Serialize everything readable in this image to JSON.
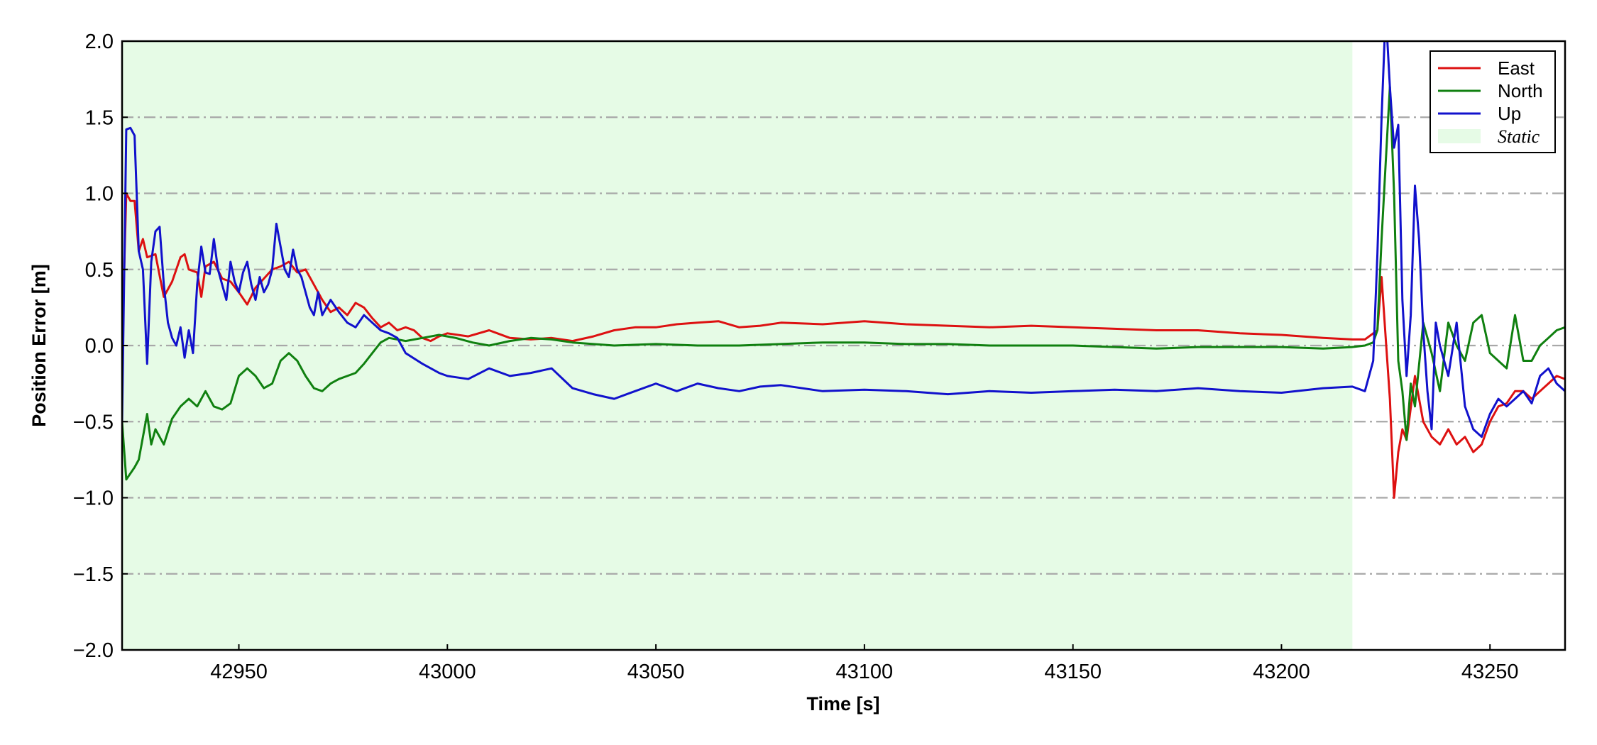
{
  "chart_data": {
    "type": "line",
    "xlabel": "Time [s]",
    "ylabel": "Position Error [m]",
    "xlim": [
      42922,
      43268
    ],
    "ylim": [
      -2.0,
      2.0
    ],
    "x_ticks": [
      42950,
      43000,
      43050,
      43100,
      43150,
      43200,
      43250
    ],
    "x_tick_labels": [
      "42950",
      "43000",
      "43050",
      "43100",
      "43150",
      "43200",
      "43250"
    ],
    "y_ticks": [
      -2.0,
      -1.5,
      -1.0,
      -0.5,
      0.0,
      0.5,
      1.0,
      1.5,
      2.0
    ],
    "y_tick_labels": [
      "−2.0",
      "−1.5",
      "−1.0",
      "−0.5",
      "0.0",
      "0.5",
      "1.0",
      "1.5",
      "2.0"
    ],
    "grid": "horizontal dash-dot",
    "legend_position": "top-right",
    "static_region": {
      "label": "Static",
      "x_start": 42922,
      "x_end": 43217,
      "color": "#e6fbe6"
    },
    "series": [
      {
        "name": "East",
        "color": "#dd1111",
        "x": [
          42922,
          42923,
          42924,
          42925,
          42926,
          42927,
          42928,
          42930,
          42932,
          42934,
          42936,
          42937,
          42938,
          42940,
          42941,
          42942,
          42944,
          42946,
          42948,
          42950,
          42952,
          42954,
          42956,
          42958,
          42960,
          42962,
          42964,
          42966,
          42968,
          42970,
          42972,
          42974,
          42976,
          42978,
          42980,
          42982,
          42984,
          42986,
          42988,
          42990,
          42992,
          42994,
          42996,
          42998,
          43000,
          43005,
          43010,
          43012,
          43015,
          43020,
          43025,
          43030,
          43035,
          43040,
          43045,
          43050,
          43055,
          43060,
          43065,
          43070,
          43075,
          43080,
          43090,
          43100,
          43110,
          43120,
          43130,
          43140,
          43150,
          43160,
          43170,
          43180,
          43190,
          43200,
          43210,
          43217,
          43220,
          43223,
          43224,
          43225,
          43226,
          43227,
          43228,
          43229,
          43230,
          43232,
          43234,
          43236,
          43238,
          43240,
          43242,
          43244,
          43246,
          43248,
          43250,
          43252,
          43254,
          43256,
          43258,
          43260,
          43262,
          43264,
          43266,
          43268
        ],
        "y": [
          0.0,
          1.0,
          0.95,
          0.95,
          0.62,
          0.7,
          0.58,
          0.6,
          0.32,
          0.42,
          0.58,
          0.6,
          0.5,
          0.48,
          0.32,
          0.52,
          0.55,
          0.44,
          0.42,
          0.35,
          0.27,
          0.38,
          0.44,
          0.5,
          0.52,
          0.55,
          0.48,
          0.5,
          0.4,
          0.3,
          0.22,
          0.25,
          0.2,
          0.28,
          0.25,
          0.18,
          0.12,
          0.15,
          0.1,
          0.12,
          0.1,
          0.05,
          0.03,
          0.06,
          0.08,
          0.06,
          0.1,
          0.08,
          0.05,
          0.04,
          0.05,
          0.03,
          0.06,
          0.1,
          0.12,
          0.12,
          0.14,
          0.15,
          0.16,
          0.12,
          0.13,
          0.15,
          0.14,
          0.16,
          0.14,
          0.13,
          0.12,
          0.13,
          0.12,
          0.11,
          0.1,
          0.1,
          0.08,
          0.07,
          0.05,
          0.04,
          0.04,
          0.1,
          0.45,
          0.05,
          -0.35,
          -1.0,
          -0.7,
          -0.55,
          -0.62,
          -0.2,
          -0.5,
          -0.6,
          -0.65,
          -0.55,
          -0.65,
          -0.6,
          -0.7,
          -0.65,
          -0.5,
          -0.4,
          -0.38,
          -0.3,
          -0.3,
          -0.35,
          -0.3,
          -0.25,
          -0.2,
          -0.22
        ]
      },
      {
        "name": "North",
        "color": "#108010",
        "x": [
          42922,
          42923,
          42925,
          42926,
          42927,
          42928,
          42929,
          42930,
          42931,
          42932,
          42934,
          42936,
          42938,
          42940,
          42942,
          42944,
          42946,
          42948,
          42950,
          42952,
          42954,
          42956,
          42958,
          42960,
          42962,
          42964,
          42966,
          42968,
          42970,
          42972,
          42974,
          42976,
          42978,
          42980,
          42982,
          42984,
          42986,
          42988,
          42990,
          42994,
          42998,
          43002,
          43006,
          43010,
          43015,
          43020,
          43025,
          43030,
          43040,
          43050,
          43060,
          43070,
          43080,
          43090,
          43100,
          43110,
          43120,
          43130,
          43140,
          43150,
          43160,
          43170,
          43180,
          43190,
          43200,
          43210,
          43217,
          43220,
          43222,
          43223,
          43224,
          43225,
          43226,
          43227,
          43228,
          43229,
          43230,
          43231,
          43232,
          43234,
          43236,
          43238,
          43240,
          43242,
          43244,
          43246,
          43248,
          43250,
          43252,
          43254,
          43256,
          43258,
          43260,
          43262,
          43264,
          43266,
          43268
        ],
        "y": [
          -0.5,
          -0.88,
          -0.8,
          -0.75,
          -0.6,
          -0.45,
          -0.65,
          -0.55,
          -0.6,
          -0.65,
          -0.48,
          -0.4,
          -0.35,
          -0.4,
          -0.3,
          -0.4,
          -0.42,
          -0.38,
          -0.2,
          -0.15,
          -0.2,
          -0.28,
          -0.25,
          -0.1,
          -0.05,
          -0.1,
          -0.2,
          -0.28,
          -0.3,
          -0.25,
          -0.22,
          -0.2,
          -0.18,
          -0.12,
          -0.05,
          0.02,
          0.05,
          0.04,
          0.03,
          0.05,
          0.07,
          0.05,
          0.02,
          0.0,
          0.03,
          0.05,
          0.04,
          0.02,
          0.0,
          0.01,
          0.0,
          0.0,
          0.01,
          0.02,
          0.02,
          0.01,
          0.01,
          0.0,
          0.0,
          0.0,
          -0.01,
          -0.02,
          -0.01,
          -0.01,
          -0.01,
          -0.02,
          -0.01,
          0.0,
          0.02,
          0.1,
          0.7,
          1.2,
          1.7,
          1.0,
          -0.1,
          -0.3,
          -0.62,
          -0.25,
          -0.4,
          0.15,
          -0.05,
          -0.3,
          0.15,
          0.0,
          -0.1,
          0.15,
          0.2,
          -0.05,
          -0.1,
          -0.15,
          0.2,
          -0.1,
          -0.1,
          0.0,
          0.05,
          0.1,
          0.12
        ]
      },
      {
        "name": "Up",
        "color": "#1111cc",
        "x": [
          42922,
          42923,
          42924,
          42925,
          42926,
          42927,
          42928,
          42929,
          42930,
          42931,
          42932,
          42933,
          42934,
          42935,
          42936,
          42937,
          42938,
          42939,
          42940,
          42941,
          42942,
          42943,
          42944,
          42945,
          42946,
          42947,
          42948,
          42949,
          42950,
          42951,
          42952,
          42953,
          42954,
          42955,
          42956,
          42957,
          42958,
          42959,
          42960,
          42961,
          42962,
          42963,
          42964,
          42965,
          42966,
          42967,
          42968,
          42969,
          42970,
          42972,
          42974,
          42976,
          42978,
          42980,
          42982,
          42984,
          42986,
          42988,
          42990,
          42994,
          42998,
          43000,
          43005,
          43010,
          43015,
          43020,
          43025,
          43030,
          43035,
          43040,
          43045,
          43050,
          43055,
          43060,
          43065,
          43070,
          43075,
          43080,
          43090,
          43100,
          43110,
          43120,
          43130,
          43140,
          43150,
          43160,
          43170,
          43180,
          43190,
          43200,
          43210,
          43217,
          43220,
          43222,
          43223,
          43224,
          43225,
          43226,
          43227,
          43228,
          43229,
          43230,
          43231,
          43232,
          43233,
          43234,
          43235,
          43236,
          43237,
          43238,
          43240,
          43242,
          43244,
          43246,
          43248,
          43250,
          43252,
          43254,
          43256,
          43258,
          43260,
          43262,
          43264,
          43266,
          43268
        ],
        "y": [
          -0.5,
          1.42,
          1.43,
          1.38,
          0.62,
          0.5,
          -0.12,
          0.55,
          0.75,
          0.78,
          0.4,
          0.15,
          0.05,
          0.0,
          0.12,
          -0.08,
          0.1,
          -0.05,
          0.4,
          0.65,
          0.48,
          0.47,
          0.7,
          0.5,
          0.4,
          0.3,
          0.55,
          0.42,
          0.35,
          0.48,
          0.55,
          0.4,
          0.3,
          0.45,
          0.35,
          0.4,
          0.5,
          0.8,
          0.65,
          0.5,
          0.45,
          0.63,
          0.5,
          0.45,
          0.35,
          0.25,
          0.2,
          0.35,
          0.2,
          0.3,
          0.22,
          0.15,
          0.12,
          0.2,
          0.15,
          0.1,
          0.08,
          0.05,
          -0.05,
          -0.12,
          -0.18,
          -0.2,
          -0.22,
          -0.15,
          -0.2,
          -0.18,
          -0.15,
          -0.28,
          -0.32,
          -0.35,
          -0.3,
          -0.25,
          -0.3,
          -0.25,
          -0.28,
          -0.3,
          -0.27,
          -0.26,
          -0.3,
          -0.29,
          -0.3,
          -0.32,
          -0.3,
          -0.31,
          -0.3,
          -0.29,
          -0.3,
          -0.28,
          -0.3,
          -0.31,
          -0.28,
          -0.27,
          -0.3,
          -0.1,
          0.6,
          1.5,
          2.2,
          1.7,
          1.3,
          1.45,
          0.3,
          -0.2,
          0.2,
          1.05,
          0.7,
          0.1,
          -0.3,
          -0.55,
          0.15,
          0.0,
          -0.2,
          0.15,
          -0.4,
          -0.55,
          -0.6,
          -0.45,
          -0.35,
          -0.4,
          -0.35,
          -0.3,
          -0.38,
          -0.2,
          -0.15,
          -0.25,
          -0.3
        ]
      }
    ]
  }
}
